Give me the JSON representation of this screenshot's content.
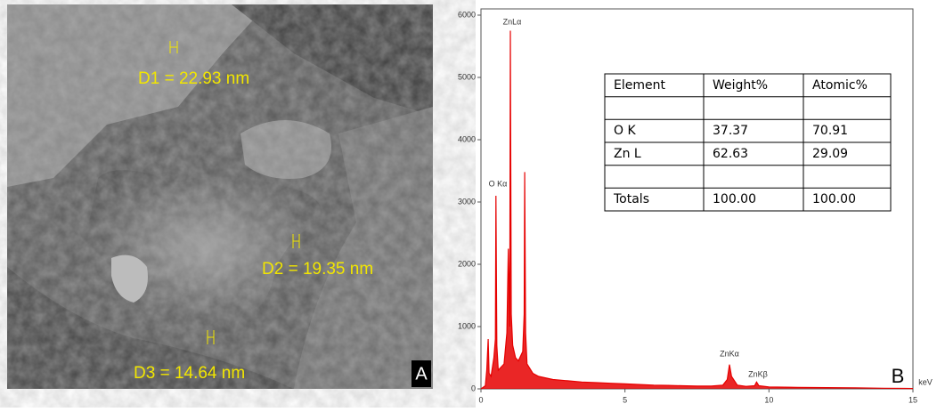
{
  "image_panel": {
    "labels": [
      "D1 = 22.93 nm",
      "D2 = 19.35 nm",
      "D3 = 14.64 nm"
    ],
    "panel_label": "A"
  },
  "chart_data": {
    "type": "line",
    "panel_label": "B",
    "xlabel": "keV",
    "x": [
      0,
      0.15,
      0.2,
      0.25,
      0.28,
      0.35,
      0.45,
      0.5,
      0.52,
      0.55,
      0.6,
      0.7,
      0.8,
      0.9,
      0.95,
      1.0,
      1.02,
      1.05,
      1.1,
      1.2,
      1.3,
      1.45,
      1.5,
      1.52,
      1.55,
      1.6,
      1.8,
      2.0,
      2.5,
      3,
      3.5,
      4,
      4.5,
      5,
      5.5,
      6,
      6.5,
      7,
      7.5,
      8,
      8.4,
      8.55,
      8.63,
      8.7,
      8.9,
      9.2,
      9.5,
      9.57,
      9.65,
      10,
      11,
      12,
      13,
      14,
      15
    ],
    "series": [
      {
        "color": "#e60000",
        "values": [
          0,
          50,
          300,
          800,
          250,
          200,
          500,
          800,
          3100,
          700,
          300,
          350,
          400,
          900,
          2250,
          1000,
          5750,
          1200,
          700,
          500,
          450,
          600,
          1200,
          3480,
          900,
          400,
          250,
          200,
          150,
          130,
          110,
          100,
          90,
          80,
          70,
          60,
          55,
          50,
          45,
          45,
          60,
          150,
          390,
          200,
          60,
          40,
          50,
          110,
          50,
          30,
          25,
          20,
          15,
          10,
          5
        ]
      }
    ],
    "xlim": [
      0,
      15
    ],
    "ylim": [
      0,
      6100
    ],
    "xticks": [
      0,
      5,
      10,
      15
    ],
    "yticks": [
      0,
      1000,
      2000,
      3000,
      4000,
      5000,
      6000
    ],
    "annotations": [
      "ZnLα",
      "O Kα",
      "ZnKα",
      "ZnKβ"
    ]
  },
  "table": {
    "header": [
      "Element",
      "Weight%",
      "Atomic%"
    ],
    "rows": [
      [
        "O K",
        "37.37",
        "70.91"
      ],
      [
        "Zn L",
        "62.63",
        "29.09"
      ],
      [
        "Totals",
        "100.00",
        "100.00"
      ]
    ]
  }
}
